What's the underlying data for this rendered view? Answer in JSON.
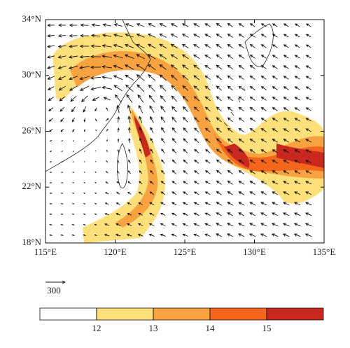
{
  "map": {
    "xlim": [
      115,
      135
    ],
    "ylim": [
      18,
      34
    ],
    "xticks": [
      {
        "value": 115,
        "label": "115°E"
      },
      {
        "value": 120,
        "label": "120°E"
      },
      {
        "value": 125,
        "label": "125°E"
      },
      {
        "value": 130,
        "label": "130°E"
      },
      {
        "value": 135,
        "label": "135°E"
      }
    ],
    "yticks": [
      {
        "value": 18,
        "label": "18°N"
      },
      {
        "value": 22,
        "label": "22°N"
      },
      {
        "value": 26,
        "label": "26°N"
      },
      {
        "value": 30,
        "label": "30°N"
      },
      {
        "value": 34,
        "label": "34°N"
      }
    ],
    "reference_vector": 300,
    "colorbar": {
      "lim": [
        11,
        16
      ],
      "ticks": [
        12,
        13,
        14,
        15
      ],
      "colors": [
        "#ffffff",
        "#fde07a",
        "#f9a340",
        "#f4661c",
        "#c8281e"
      ]
    }
  }
}
